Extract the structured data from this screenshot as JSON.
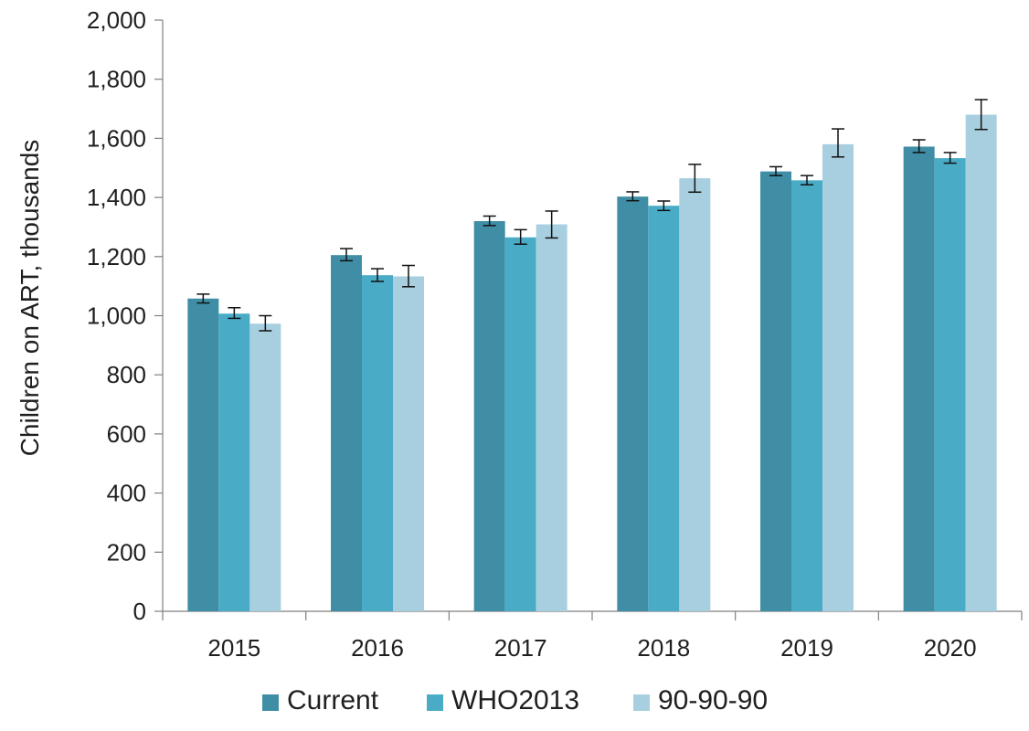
{
  "chart_data": {
    "type": "bar",
    "title": "",
    "xlabel": "",
    "ylabel": "Children on ART, thousands",
    "ylim": [
      0,
      2000
    ],
    "yticks": [
      0,
      200,
      400,
      600,
      800,
      1000,
      1200,
      1400,
      1600,
      1800,
      2000
    ],
    "ytick_labels": [
      "0",
      "200",
      "400",
      "600",
      "800",
      "1,000",
      "1,200",
      "1,400",
      "1,600",
      "1,800",
      "2,000"
    ],
    "categories": [
      "2015",
      "2016",
      "2017",
      "2018",
      "2019",
      "2020"
    ],
    "legend_position": "bottom",
    "grid": false,
    "series": [
      {
        "name": "Current",
        "color": "#3f8ea5",
        "values": [
          1058,
          1205,
          1320,
          1403,
          1488,
          1572
        ],
        "error_low": [
          1043,
          1186,
          1305,
          1389,
          1474,
          1552
        ],
        "error_high": [
          1073,
          1227,
          1337,
          1419,
          1504,
          1595
        ]
      },
      {
        "name": "WHO2013",
        "color": "#4aabc7",
        "values": [
          1007,
          1137,
          1265,
          1372,
          1458,
          1533
        ],
        "error_low": [
          991,
          1116,
          1242,
          1356,
          1443,
          1516
        ],
        "error_high": [
          1027,
          1159,
          1291,
          1388,
          1474,
          1552
        ]
      },
      {
        "name": "90-90-90",
        "color": "#a8cfdf",
        "values": [
          973,
          1133,
          1309,
          1465,
          1580,
          1680
        ],
        "error_low": [
          949,
          1098,
          1263,
          1418,
          1537,
          1630
        ],
        "error_high": [
          1000,
          1170,
          1354,
          1512,
          1632,
          1731
        ]
      }
    ]
  }
}
